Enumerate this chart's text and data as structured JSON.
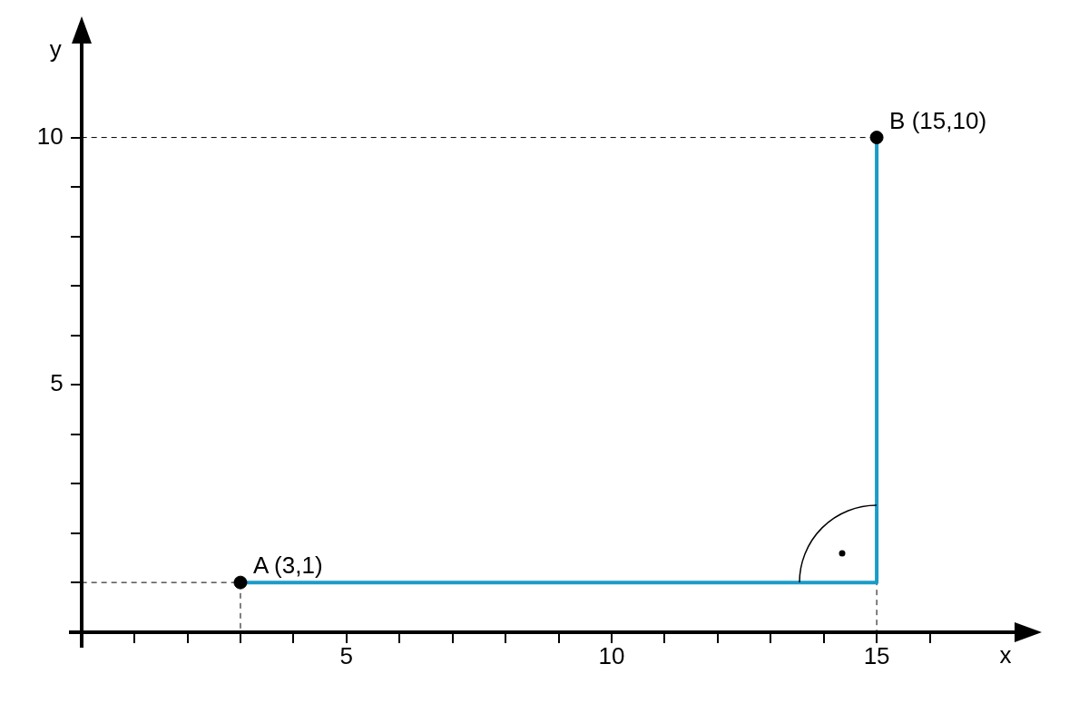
{
  "chart_data": {
    "type": "line",
    "xlabel": "x",
    "ylabel": "y",
    "xlim": [
      -0.2,
      17.6
    ],
    "ylim": [
      -0.3,
      11.9
    ],
    "xticks": [
      {
        "value": 1,
        "label": null
      },
      {
        "value": 2,
        "label": null
      },
      {
        "value": 3,
        "label": null
      },
      {
        "value": 4,
        "label": null
      },
      5,
      {
        "value": 6,
        "label": null
      },
      {
        "value": 7,
        "label": null
      },
      {
        "value": 8,
        "label": null
      },
      {
        "value": 9,
        "label": null
      },
      10,
      {
        "value": 11,
        "label": null
      },
      {
        "value": 12,
        "label": null
      },
      {
        "value": 13,
        "label": null
      },
      {
        "value": 14,
        "label": null
      },
      15,
      {
        "value": 16,
        "label": null
      }
    ],
    "yticks": [
      {
        "value": 1,
        "label": null
      },
      {
        "value": 2,
        "label": null
      },
      {
        "value": 3,
        "label": null
      },
      {
        "value": 4,
        "label": null
      },
      5,
      {
        "value": 6,
        "label": null
      },
      {
        "value": 7,
        "label": null
      },
      {
        "value": 8,
        "label": null
      },
      {
        "value": 9,
        "label": null
      },
      10
    ],
    "grid": false,
    "legend": false,
    "series": [
      {
        "color": "#1a9bc9",
        "x": [
          3,
          15,
          15
        ],
        "values": [
          1,
          1,
          10
        ],
        "marker": "none",
        "line_style": "solid"
      },
      {
        "color": "#000000",
        "x": [
          0,
          3,
          3
        ],
        "values": [
          1,
          1,
          0
        ],
        "marker": "none",
        "line_style": "dashed"
      },
      {
        "color": "#000000",
        "x": [
          0,
          15,
          15
        ],
        "values": [
          10,
          10,
          0
        ],
        "marker": "none",
        "line_style": "dashed"
      },
      {
        "type": "scatter",
        "color": "#000000",
        "x": [
          3,
          15
        ],
        "values": [
          1,
          10
        ],
        "marker": "circle"
      }
    ],
    "annotations": [
      {
        "text": "A (3,1)",
        "x": 3,
        "y": 1
      },
      {
        "text": "B (15,10)",
        "x": 15,
        "y": 10
      }
    ]
  }
}
